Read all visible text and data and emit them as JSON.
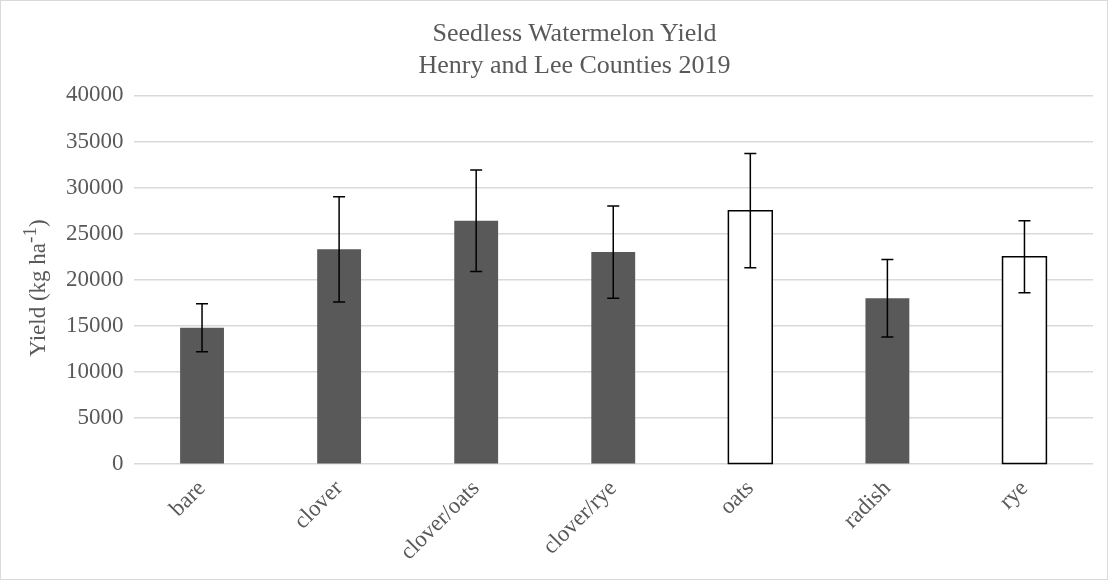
{
  "chart_data": {
    "type": "bar",
    "title": [
      "Seedless Watermelon Yield",
      "Henry and Lee Counties 2019"
    ],
    "ylabel": "Yield (kg ha$^{-1}$)",
    "categories": [
      "bare",
      "clover",
      "clover/oats",
      "clover/rye",
      "oats",
      "radish",
      "rye"
    ],
    "values": [
      14800,
      23300,
      26400,
      23000,
      27500,
      18000,
      22500
    ],
    "errors": [
      2600,
      5700,
      5500,
      5000,
      6200,
      4200,
      3900
    ],
    "colors": [
      "#595959",
      "#595959",
      "#595959",
      "#595959",
      "#ffffff",
      "#595959",
      "#ffffff"
    ],
    "ylim": [
      0,
      40000
    ],
    "yticks": [
      0,
      5000,
      10000,
      15000,
      20000,
      25000,
      30000,
      35000,
      40000
    ],
    "grid": "y"
  }
}
